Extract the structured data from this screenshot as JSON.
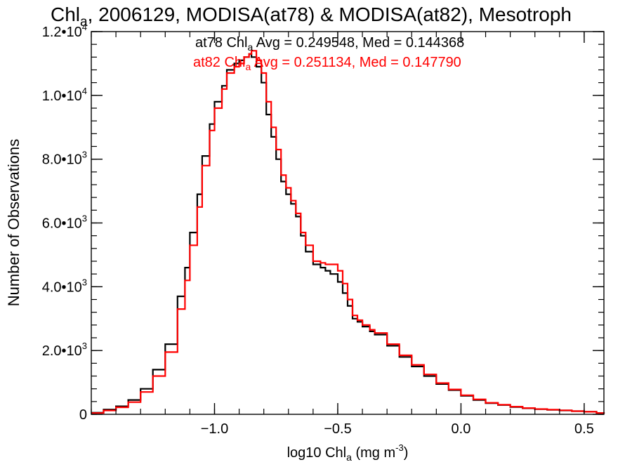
{
  "chart_data": {
    "type": "line",
    "title": {
      "main": "Chl",
      "sub": "a",
      "rest": ", 2006129, MODISA(at78) & MODISA(at82), Mesotroph"
    },
    "xlabel": {
      "pre": "log10 Chl",
      "sub": "a",
      "mid": " (mg m",
      "sup": "-3",
      "post": ")"
    },
    "ylabel": "Number of Observations",
    "xlim": [
      -1.5,
      0.58
    ],
    "ylim": [
      0,
      12000
    ],
    "x_ticks": [
      {
        "value": -1.0,
        "label": "−1.0"
      },
      {
        "value": -0.5,
        "label": "−0.5"
      },
      {
        "value": 0.0,
        "label": "0.0"
      },
      {
        "value": 0.5,
        "label": "0.5"
      }
    ],
    "y_ticks": [
      {
        "value": 0,
        "mant": "0",
        "exp": ""
      },
      {
        "value": 2000,
        "mant": "2.0•10",
        "exp": "3"
      },
      {
        "value": 4000,
        "mant": "4.0•10",
        "exp": "3"
      },
      {
        "value": 6000,
        "mant": "6.0•10",
        "exp": "3"
      },
      {
        "value": 8000,
        "mant": "8.0•10",
        "exp": "3"
      },
      {
        "value": 10000,
        "mant": "1.0•10",
        "exp": "4"
      },
      {
        "value": 12000,
        "mant": "1.2•10",
        "exp": "4"
      }
    ],
    "annotations": [
      {
        "series": "at78",
        "pre": "at78 Chl",
        "sub": "a",
        "post": " Avg = 0.249548, Med = 0.144368"
      },
      {
        "series": "at82",
        "pre": "at82 Chl",
        "sub": "a",
        "post": " Avg = 0.251134, Med = 0.147790"
      }
    ],
    "series": [
      {
        "name": "at78",
        "color": "#000000",
        "step": true,
        "points": [
          [
            -1.5,
            50
          ],
          [
            -1.45,
            150
          ],
          [
            -1.4,
            250
          ],
          [
            -1.35,
            450
          ],
          [
            -1.3,
            800
          ],
          [
            -1.25,
            1400
          ],
          [
            -1.2,
            2200
          ],
          [
            -1.15,
            3700
          ],
          [
            -1.12,
            4600
          ],
          [
            -1.1,
            5700
          ],
          [
            -1.07,
            6900
          ],
          [
            -1.05,
            8100
          ],
          [
            -1.02,
            9100
          ],
          [
            -1.0,
            9800
          ],
          [
            -0.97,
            10300
          ],
          [
            -0.95,
            10800
          ],
          [
            -0.92,
            11000
          ],
          [
            -0.9,
            11100
          ],
          [
            -0.88,
            11200
          ],
          [
            -0.86,
            11300
          ],
          [
            -0.85,
            11200
          ],
          [
            -0.83,
            10900
          ],
          [
            -0.81,
            10400
          ],
          [
            -0.79,
            9400
          ],
          [
            -0.77,
            8700
          ],
          [
            -0.75,
            8000
          ],
          [
            -0.73,
            7300
          ],
          [
            -0.71,
            6900
          ],
          [
            -0.69,
            6600
          ],
          [
            -0.67,
            6200
          ],
          [
            -0.65,
            5600
          ],
          [
            -0.63,
            5100
          ],
          [
            -0.6,
            4700
          ],
          [
            -0.57,
            4600
          ],
          [
            -0.55,
            4500
          ],
          [
            -0.53,
            4400
          ],
          [
            -0.5,
            4150
          ],
          [
            -0.48,
            3800
          ],
          [
            -0.46,
            3400
          ],
          [
            -0.44,
            3000
          ],
          [
            -0.42,
            2900
          ],
          [
            -0.4,
            2750
          ],
          [
            -0.37,
            2600
          ],
          [
            -0.35,
            2500
          ],
          [
            -0.3,
            2150
          ],
          [
            -0.25,
            1800
          ],
          [
            -0.2,
            1500
          ],
          [
            -0.15,
            1200
          ],
          [
            -0.1,
            950
          ],
          [
            -0.05,
            760
          ],
          [
            0.0,
            580
          ],
          [
            0.05,
            450
          ],
          [
            0.1,
            350
          ],
          [
            0.15,
            290
          ],
          [
            0.2,
            230
          ],
          [
            0.25,
            190
          ],
          [
            0.3,
            160
          ],
          [
            0.35,
            140
          ],
          [
            0.4,
            120
          ],
          [
            0.45,
            100
          ],
          [
            0.5,
            80
          ],
          [
            0.55,
            40
          ],
          [
            0.58,
            20
          ]
        ]
      },
      {
        "name": "at82",
        "color": "#ff0000",
        "step": true,
        "points": [
          [
            -1.5,
            40
          ],
          [
            -1.45,
            120
          ],
          [
            -1.4,
            220
          ],
          [
            -1.35,
            380
          ],
          [
            -1.3,
            700
          ],
          [
            -1.25,
            1200
          ],
          [
            -1.2,
            1950
          ],
          [
            -1.15,
            3300
          ],
          [
            -1.12,
            4200
          ],
          [
            -1.1,
            5300
          ],
          [
            -1.07,
            6500
          ],
          [
            -1.05,
            7800
          ],
          [
            -1.02,
            8900
          ],
          [
            -1.0,
            9600
          ],
          [
            -0.97,
            10200
          ],
          [
            -0.95,
            10700
          ],
          [
            -0.92,
            10900
          ],
          [
            -0.9,
            11000
          ],
          [
            -0.88,
            11200
          ],
          [
            -0.86,
            11300
          ],
          [
            -0.85,
            11400
          ],
          [
            -0.83,
            11100
          ],
          [
            -0.81,
            10700
          ],
          [
            -0.79,
            9800
          ],
          [
            -0.77,
            9000
          ],
          [
            -0.75,
            8300
          ],
          [
            -0.73,
            7500
          ],
          [
            -0.71,
            7100
          ],
          [
            -0.69,
            6700
          ],
          [
            -0.67,
            6300
          ],
          [
            -0.65,
            5700
          ],
          [
            -0.63,
            5300
          ],
          [
            -0.6,
            4800
          ],
          [
            -0.57,
            4750
          ],
          [
            -0.55,
            4700
          ],
          [
            -0.53,
            4700
          ],
          [
            -0.5,
            4500
          ],
          [
            -0.48,
            4100
          ],
          [
            -0.46,
            3600
          ],
          [
            -0.44,
            3100
          ],
          [
            -0.42,
            2950
          ],
          [
            -0.4,
            2800
          ],
          [
            -0.37,
            2650
          ],
          [
            -0.35,
            2550
          ],
          [
            -0.3,
            2200
          ],
          [
            -0.25,
            1850
          ],
          [
            -0.2,
            1550
          ],
          [
            -0.15,
            1250
          ],
          [
            -0.1,
            980
          ],
          [
            -0.05,
            780
          ],
          [
            0.0,
            600
          ],
          [
            0.05,
            470
          ],
          [
            0.1,
            360
          ],
          [
            0.15,
            300
          ],
          [
            0.2,
            240
          ],
          [
            0.25,
            195
          ],
          [
            0.3,
            165
          ],
          [
            0.35,
            145
          ],
          [
            0.4,
            125
          ],
          [
            0.45,
            100
          ],
          [
            0.5,
            80
          ],
          [
            0.55,
            40
          ],
          [
            0.58,
            20
          ]
        ]
      }
    ],
    "grid": false,
    "legend": "top-center"
  }
}
